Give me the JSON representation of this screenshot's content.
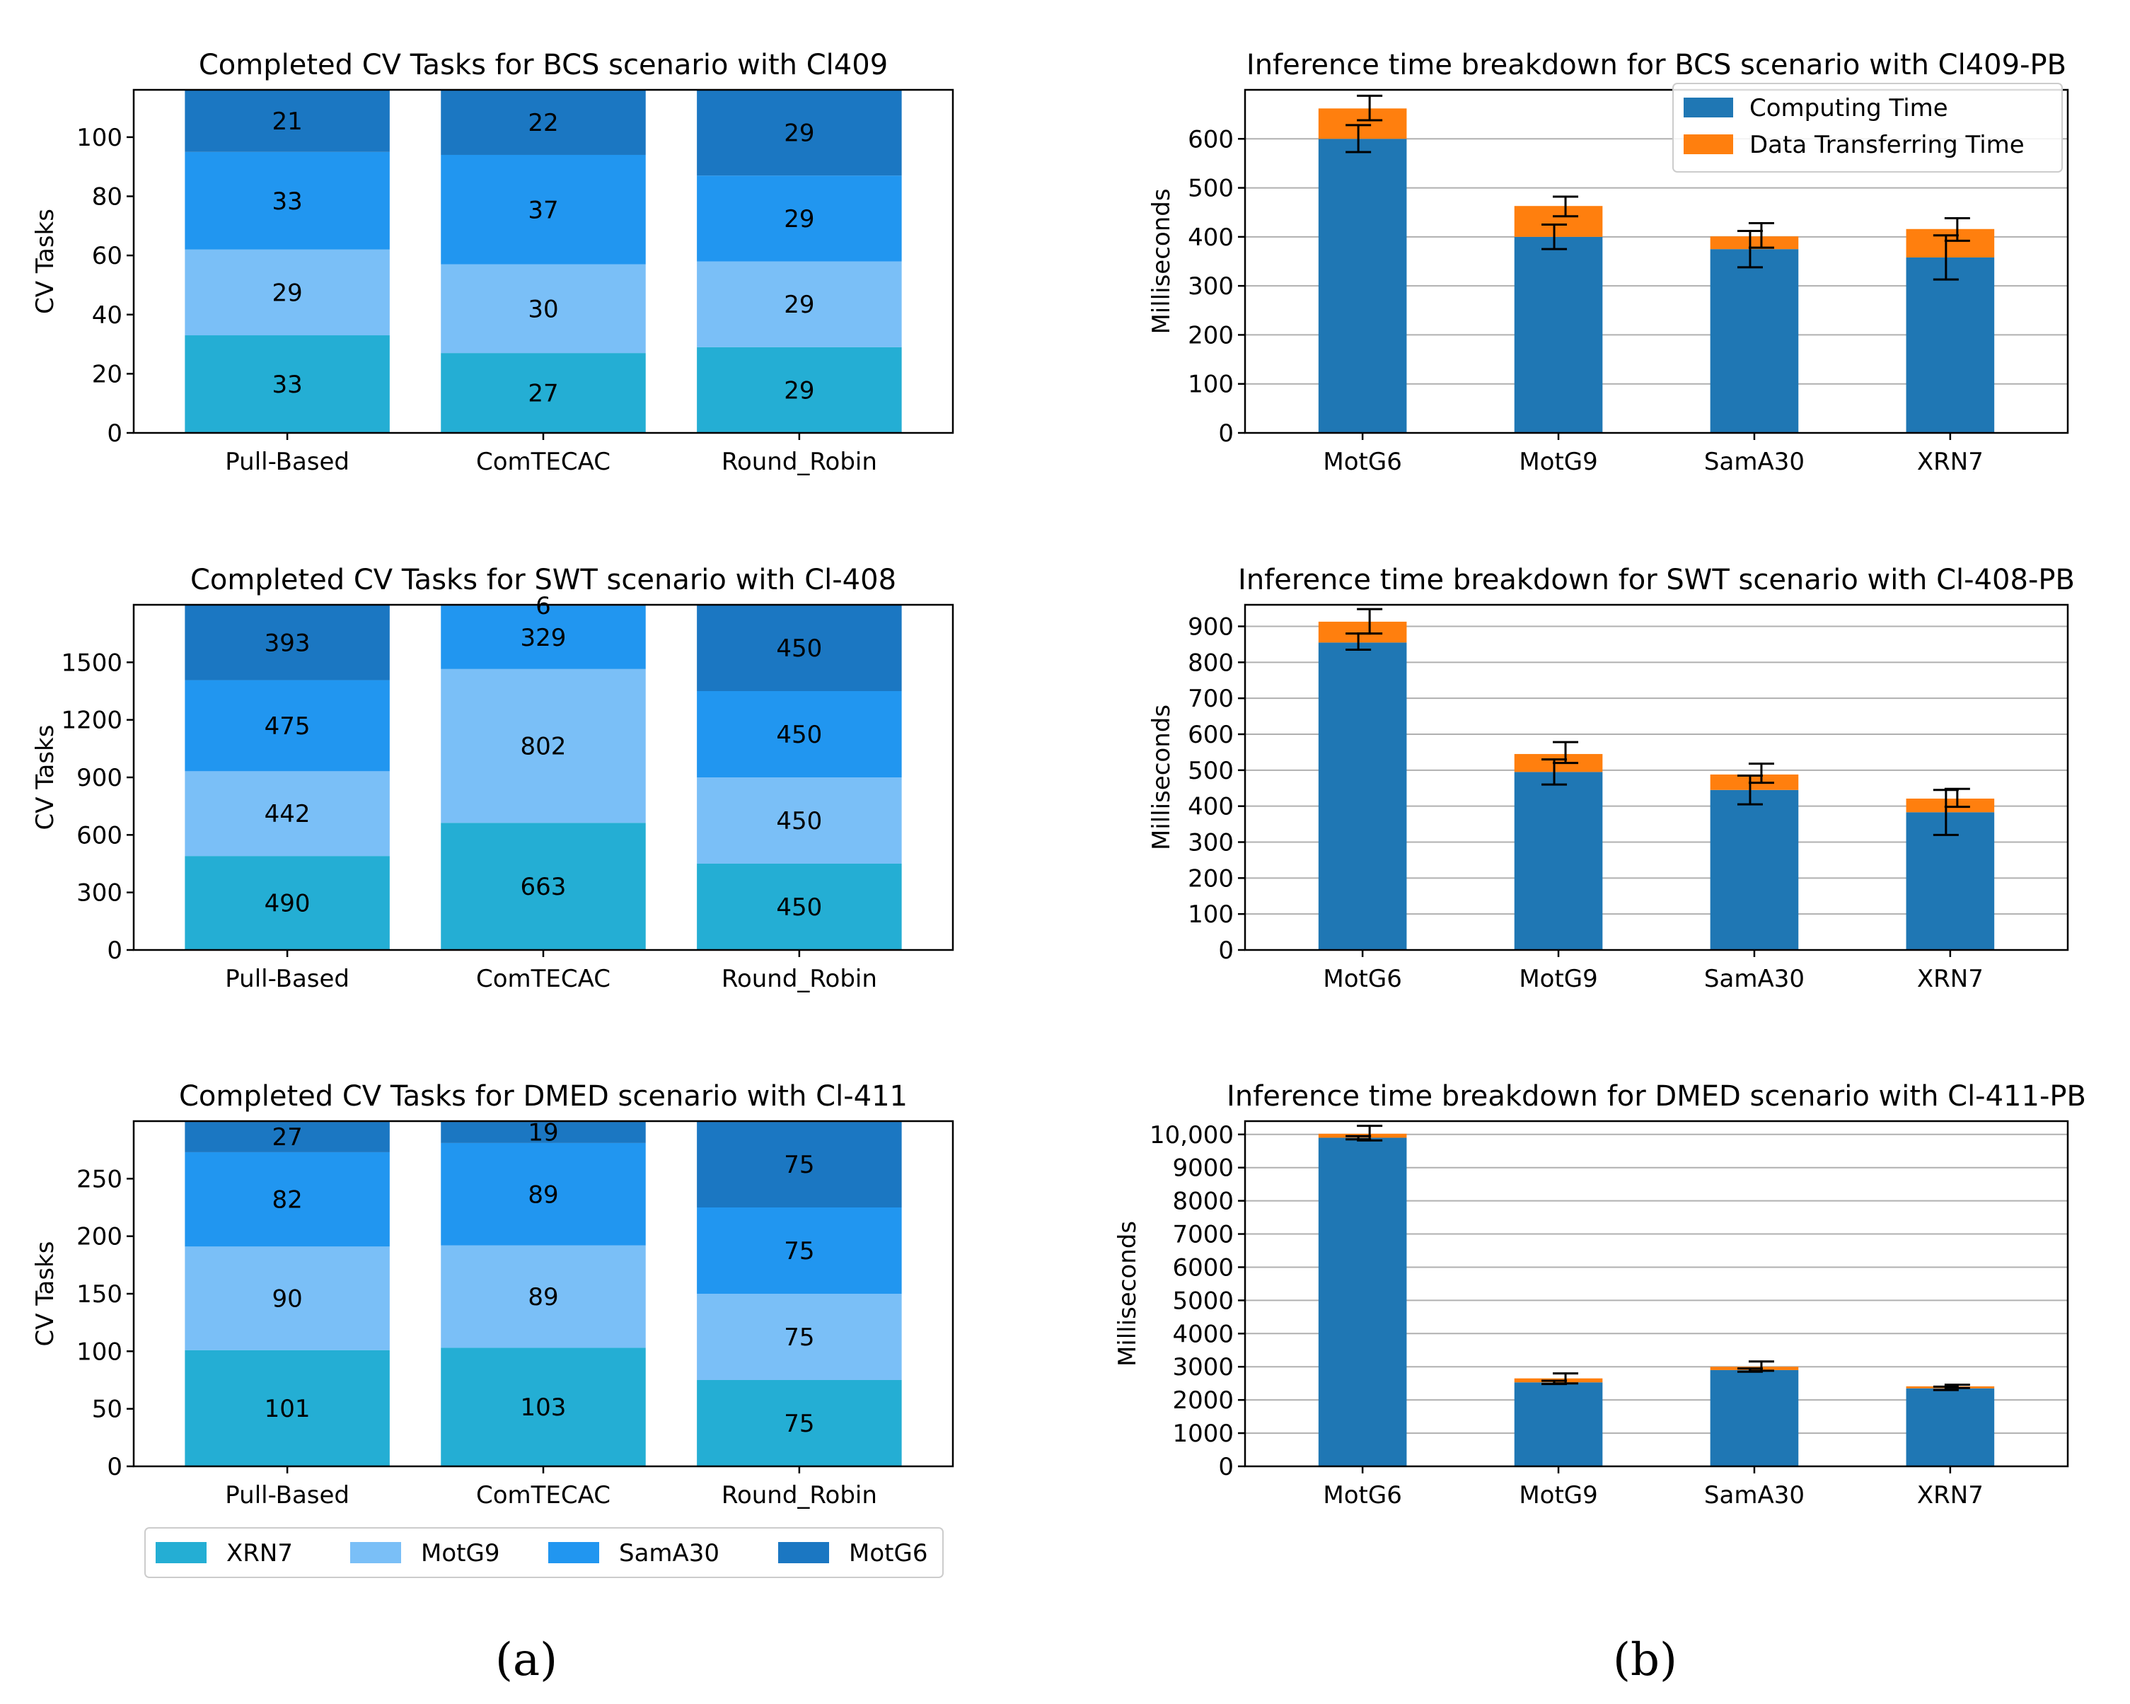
{
  "figure": {
    "panel_labels": [
      "(a)",
      "(b)"
    ]
  },
  "colors": {
    "XRN7": "#24AED4",
    "MotG9": "#7ABFF7",
    "SamA30": "#2196F0",
    "MotG6": "#1B77C2",
    "computing": "#1F77B4",
    "transfer": "#FF7F0E"
  },
  "legend_a": [
    "XRN7",
    "MotG9",
    "SamA30",
    "MotG6"
  ],
  "chart_data": [
    {
      "type": "bar",
      "stacked": true,
      "title": "Completed CV Tasks for BCS scenario with Cl409",
      "xlabel": "",
      "ylabel": "CV Tasks",
      "categories": [
        "Pull-Based",
        "ComTECAC",
        "Round_Robin"
      ],
      "series": [
        {
          "name": "XRN7",
          "values": [
            33,
            27,
            29
          ]
        },
        {
          "name": "MotG9",
          "values": [
            29,
            30,
            29
          ]
        },
        {
          "name": "SamA30",
          "values": [
            33,
            37,
            29
          ]
        },
        {
          "name": "MotG6",
          "values": [
            21,
            22,
            29
          ]
        }
      ],
      "ylim": [
        0,
        116
      ],
      "yticks": [
        0,
        20,
        40,
        60,
        80,
        100
      ],
      "ytick_labels": [
        "0",
        "20",
        "40",
        "60",
        "80",
        "100"
      ],
      "grid": false
    },
    {
      "type": "bar",
      "stacked": true,
      "title": "Completed CV Tasks for SWT scenario with Cl-408",
      "xlabel": "",
      "ylabel": "CV Tasks",
      "categories": [
        "Pull-Based",
        "ComTECAC",
        "Round_Robin"
      ],
      "series": [
        {
          "name": "XRN7",
          "values": [
            490,
            663,
            450
          ]
        },
        {
          "name": "MotG9",
          "values": [
            442,
            802,
            450
          ]
        },
        {
          "name": "SamA30",
          "values": [
            475,
            329,
            450
          ]
        },
        {
          "name": "MotG6",
          "values": [
            393,
            6,
            450
          ]
        }
      ],
      "ylim": [
        0,
        1800
      ],
      "yticks": [
        0,
        300,
        600,
        900,
        1200,
        1500
      ],
      "ytick_labels": [
        "0",
        "300",
        "600",
        "900",
        "1200",
        "1500"
      ],
      "grid": false
    },
    {
      "type": "bar",
      "stacked": true,
      "title": "Completed CV Tasks for DMED scenario with Cl-411",
      "xlabel": "",
      "ylabel": "CV Tasks",
      "categories": [
        "Pull-Based",
        "ComTECAC",
        "Round_Robin"
      ],
      "series": [
        {
          "name": "XRN7",
          "values": [
            101,
            103,
            75
          ]
        },
        {
          "name": "MotG9",
          "values": [
            90,
            89,
            75
          ]
        },
        {
          "name": "SamA30",
          "values": [
            82,
            89,
            75
          ]
        },
        {
          "name": "MotG6",
          "values": [
            27,
            19,
            75
          ]
        }
      ],
      "ylim": [
        0,
        300
      ],
      "yticks": [
        0,
        50,
        100,
        150,
        200,
        250
      ],
      "ytick_labels": [
        "0",
        "50",
        "100",
        "150",
        "200",
        "250"
      ],
      "grid": false
    },
    {
      "type": "bar",
      "stacked": true,
      "title": "Inference time breakdown for BCS scenario with Cl409-PB",
      "xlabel": "",
      "ylabel": "Milliseconds",
      "categories": [
        "MotG6",
        "MotG9",
        "SamA30",
        "XRN7"
      ],
      "series": [
        {
          "name": "Computing Time",
          "values": [
            600,
            400,
            375,
            358
          ],
          "error_low": [
            573,
            375,
            338,
            313
          ],
          "error_high": [
            628,
            425,
            412,
            403
          ]
        },
        {
          "name": "Data Transferring Time",
          "values": [
            62,
            63,
            26,
            58
          ],
          "error_low": [
            638,
            442,
            378,
            392
          ],
          "error_high": [
            688,
            482,
            428,
            438
          ]
        }
      ],
      "ylim": [
        0,
        700
      ],
      "yticks": [
        0,
        100,
        200,
        300,
        400,
        500,
        600
      ],
      "ytick_labels": [
        "0",
        "100",
        "200",
        "300",
        "400",
        "500",
        "600"
      ],
      "grid": true,
      "legend": [
        "Computing Time",
        "Data Transferring Time"
      ],
      "legend_position": "top-right"
    },
    {
      "type": "bar",
      "stacked": true,
      "title": "Inference time breakdown for SWT scenario with Cl-408-PB",
      "xlabel": "",
      "ylabel": "Milliseconds",
      "categories": [
        "MotG6",
        "MotG9",
        "SamA30",
        "XRN7"
      ],
      "series": [
        {
          "name": "Computing Time",
          "values": [
            855,
            495,
            445,
            383
          ],
          "error_low": [
            835,
            460,
            405,
            320
          ],
          "error_high": [
            880,
            530,
            485,
            445
          ]
        },
        {
          "name": "Data Transferring Time",
          "values": [
            58,
            50,
            43,
            38
          ],
          "error_low": [
            880,
            520,
            465,
            398
          ],
          "error_high": [
            948,
            578,
            518,
            448
          ]
        }
      ],
      "ylim": [
        0,
        960
      ],
      "yticks": [
        0,
        100,
        200,
        300,
        400,
        500,
        600,
        700,
        800,
        900
      ],
      "ytick_labels": [
        "0",
        "100",
        "200",
        "300",
        "400",
        "500",
        "600",
        "700",
        "800",
        "900"
      ],
      "grid": true
    },
    {
      "type": "bar",
      "stacked": true,
      "title": "Inference time breakdown for DMED scenario with Cl-411-PB",
      "xlabel": "",
      "ylabel": "Milliseconds",
      "categories": [
        "MotG6",
        "MotG9",
        "SamA30",
        "XRN7"
      ],
      "series": [
        {
          "name": "Computing Time",
          "values": [
            9900,
            2530,
            2900,
            2350
          ],
          "error_low": [
            9850,
            2480,
            2850,
            2300
          ],
          "error_high": [
            9950,
            2580,
            2950,
            2400
          ]
        },
        {
          "name": "Data Transferring Time",
          "values": [
            120,
            120,
            100,
            60
          ],
          "error_low": [
            9820,
            2500,
            2880,
            2360
          ],
          "error_high": [
            10260,
            2800,
            3160,
            2460
          ]
        }
      ],
      "ylim": [
        0,
        10400
      ],
      "yticks": [
        0,
        1000,
        2000,
        3000,
        4000,
        5000,
        6000,
        7000,
        8000,
        9000,
        10000
      ],
      "ytick_labels": [
        "0",
        "1000",
        "2000",
        "3000",
        "4000",
        "5000",
        "6000",
        "7000",
        "8000",
        "9000",
        "10,000"
      ],
      "grid": true
    }
  ]
}
